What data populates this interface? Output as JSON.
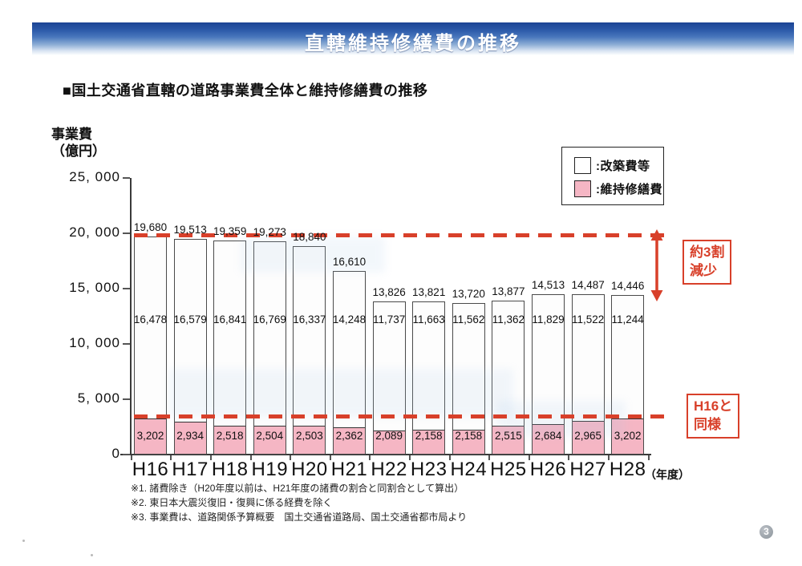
{
  "page": {
    "title": "直轄維持修繕費の推移",
    "subtitle": "■国土交通省直轄の道路事業費全体と維持修繕費の推移",
    "page_number": "3"
  },
  "axis": {
    "y_label_line1": "事業費",
    "y_label_line2": "（億円）",
    "y_tick_labels": [
      "25, 000",
      "20, 000",
      "15, 000",
      "10, 000",
      "5, 000",
      "0"
    ],
    "x_unit": "（年度）"
  },
  "legend": {
    "items": [
      {
        "label": ":改築費等",
        "color": "#ffffff"
      },
      {
        "label": ":維持修繕費",
        "color": "#f5b6c4"
      }
    ]
  },
  "annotations": {
    "decrease": {
      "line1": "約3割",
      "line2": "減少"
    },
    "same": {
      "line1": "H16と",
      "line2": "同様"
    }
  },
  "footnotes": [
    "※1. 諸費除き（H20年度以前は、H21年度の諸費の割合と同割合として算出）",
    "※2. 東日本大震災復旧・復興に係る経費を除く",
    "※3. 事業費は、道路関係予算概要　国土交通省道路局、国土交通省都市局より"
  ],
  "colors": {
    "maintenance_pink": "#f5b6c4",
    "kaichiku_white": "#fdfdfd",
    "annotation_red": "#d8402a",
    "header_blue": "#2a58a8"
  },
  "chart_data": {
    "type": "bar",
    "stacked": true,
    "title": "国土交通省直轄の道路事業費全体と維持修繕費の推移",
    "ylabel": "事業費（億円）",
    "xlabel": "年度",
    "ylim": [
      0,
      25000
    ],
    "yticks": [
      0,
      5000,
      10000,
      15000,
      20000,
      25000
    ],
    "grid": false,
    "legend_position": "upper right",
    "categories": [
      "H16",
      "H17",
      "H18",
      "H19",
      "H20",
      "H21",
      "H22",
      "H23",
      "H24",
      "H25",
      "H26",
      "H27",
      "H28"
    ],
    "series": [
      {
        "name": "維持修繕費",
        "color": "#f5b6c4",
        "values": [
          3202,
          2934,
          2518,
          2504,
          2503,
          2362,
          2089,
          2158,
          2158,
          2515,
          2684,
          2965,
          3202
        ]
      },
      {
        "name": "改築費等",
        "color": "#ffffff",
        "values": [
          16478,
          16579,
          16841,
          16769,
          16337,
          14248,
          11737,
          11663,
          11562,
          11362,
          11829,
          11522,
          11244
        ]
      }
    ],
    "totals": [
      19680,
      19513,
      19359,
      19273,
      18840,
      16610,
      13826,
      13821,
      13720,
      13877,
      14513,
      14487,
      14446
    ],
    "reference_lines": [
      {
        "value": 19680,
        "style": "red-dashed",
        "annotation": "約3割減少"
      },
      {
        "value": 3202,
        "style": "red-dashed",
        "annotation": "H16と同様"
      }
    ]
  }
}
